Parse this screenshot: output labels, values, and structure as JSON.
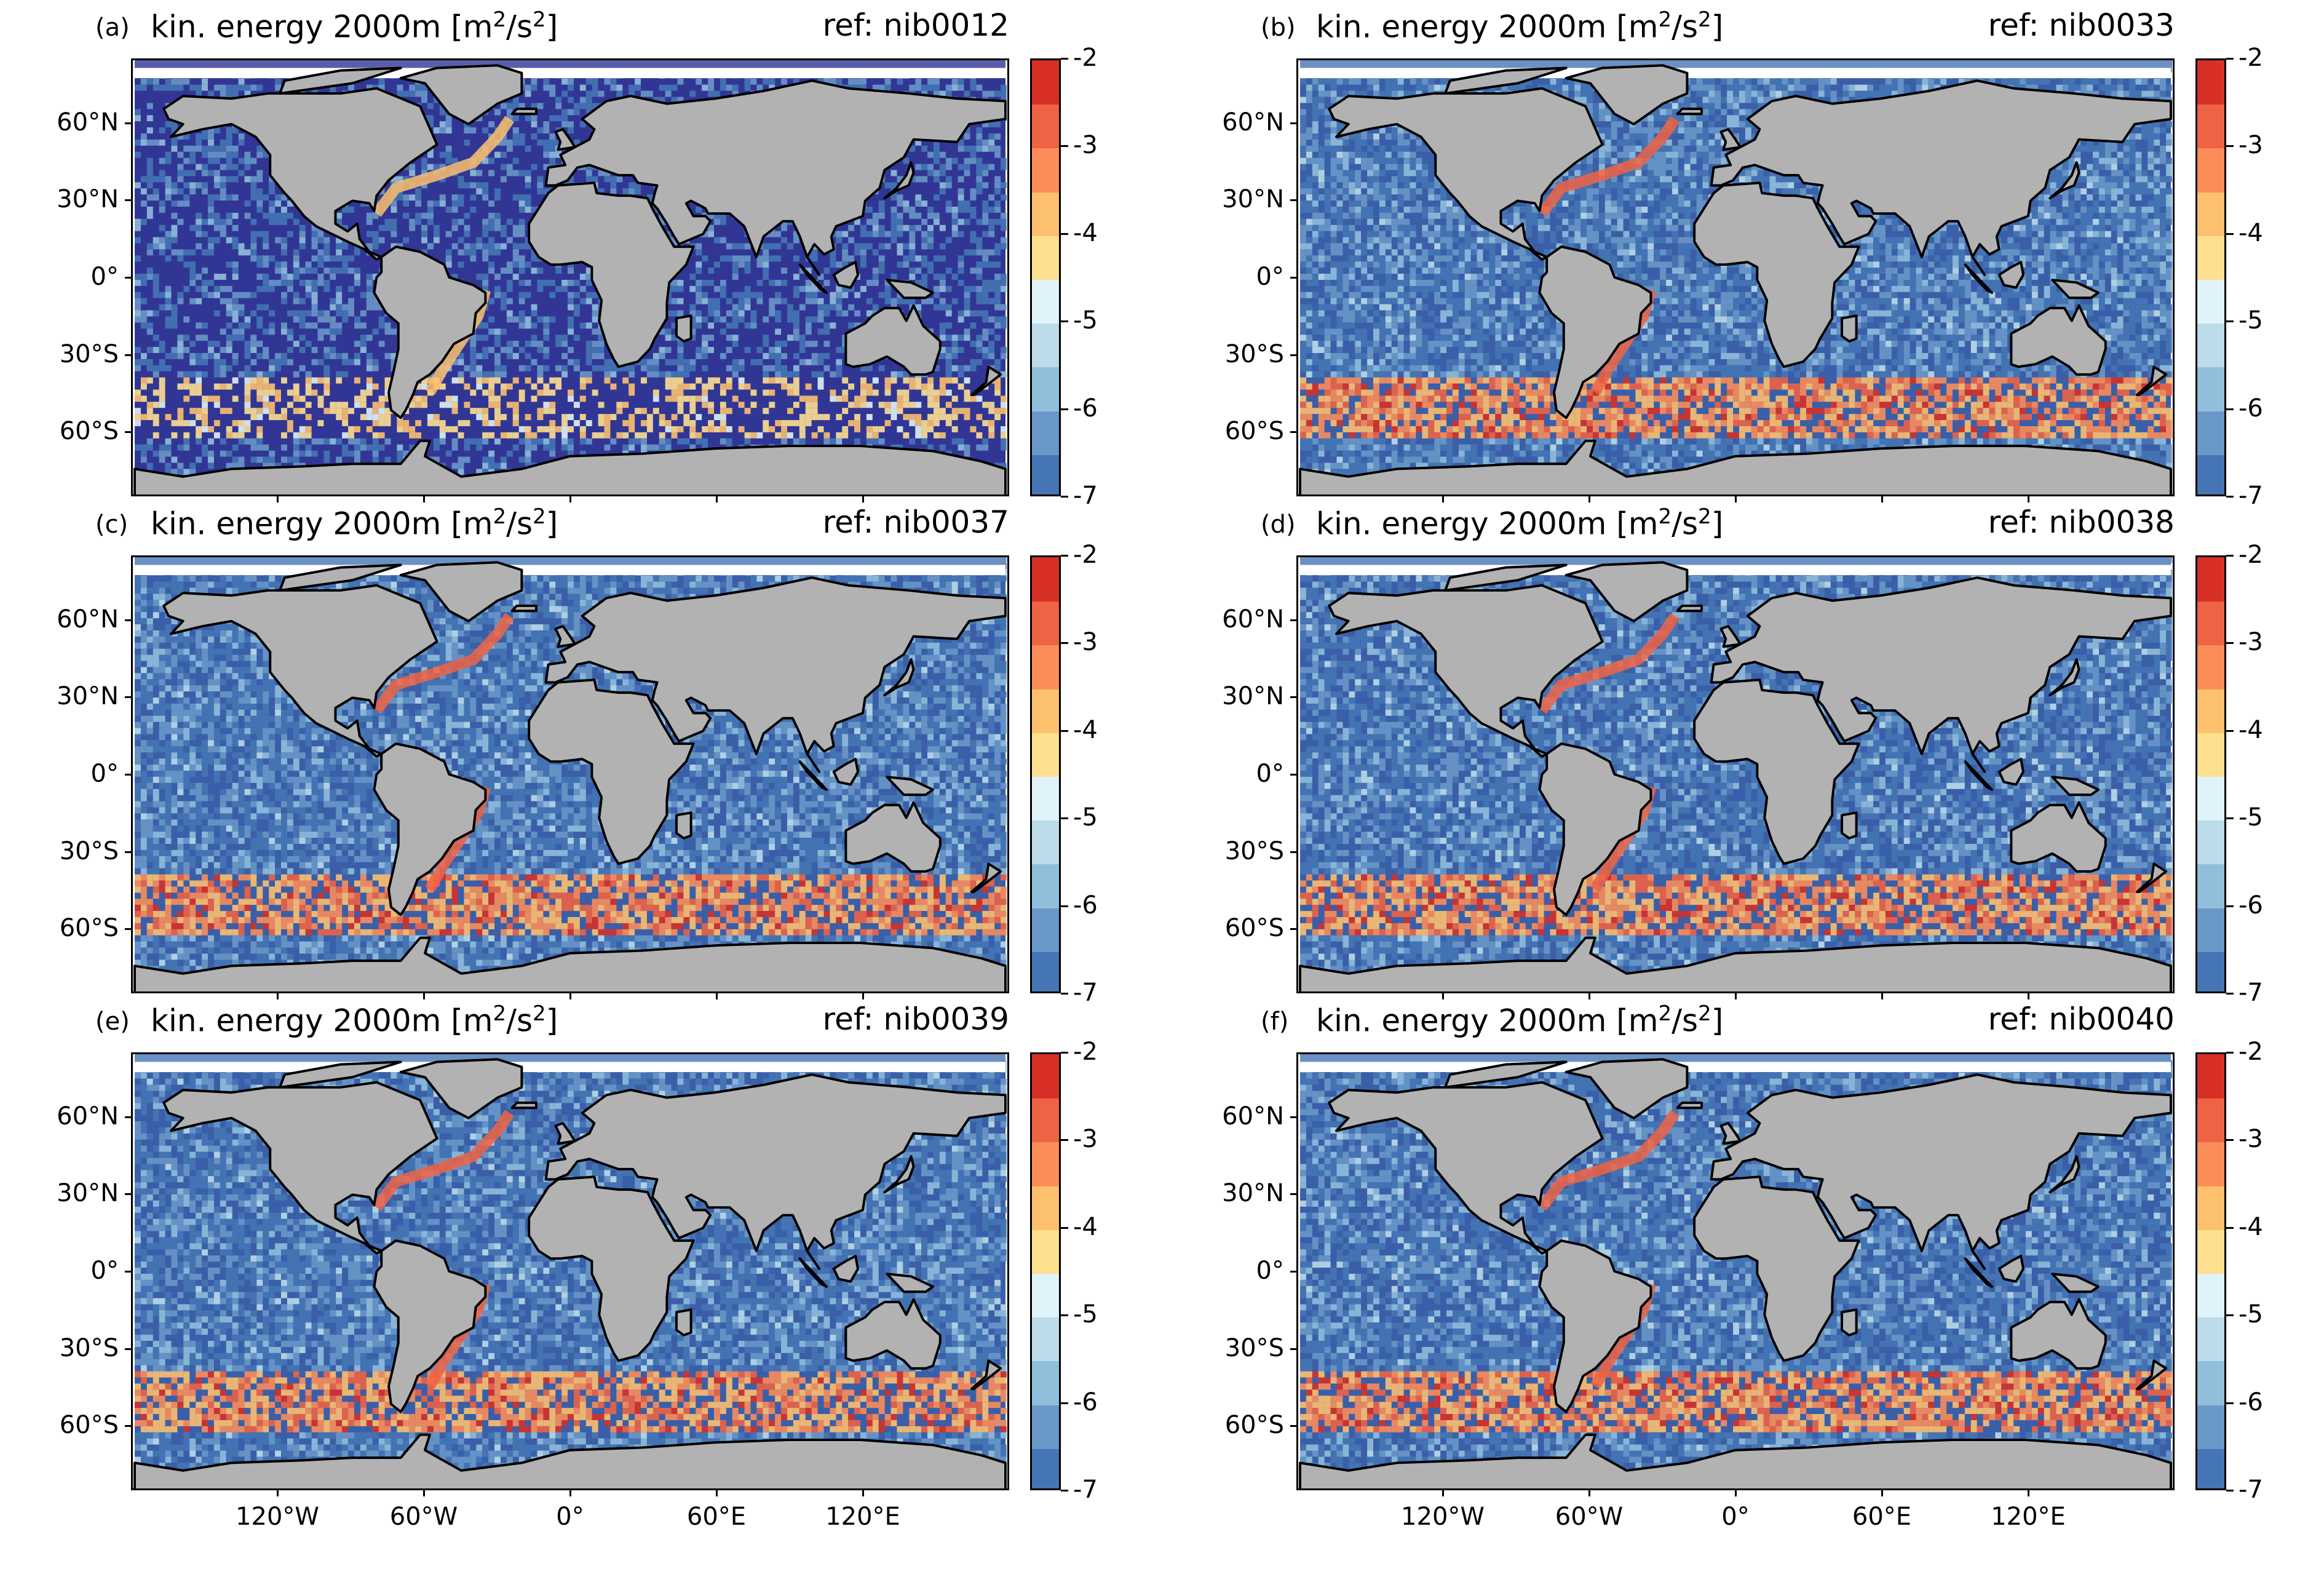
{
  "figure": {
    "panels": [
      {
        "label": "(a)",
        "title_main": "kin. energy 2000m [m",
        "title_sup1": "2",
        "title_mid": "/s",
        "title_sup2": "2",
        "title_end": "]",
        "ref": "ref: nib0012",
        "variant": "low"
      },
      {
        "label": "(b)",
        "title_main": "kin. energy 2000m [m",
        "title_sup1": "2",
        "title_mid": "/s",
        "title_sup2": "2",
        "title_end": "]",
        "ref": "ref: nib0033",
        "variant": "high"
      },
      {
        "label": "(c)",
        "title_main": "kin. energy 2000m [m",
        "title_sup1": "2",
        "title_mid": "/s",
        "title_sup2": "2",
        "title_end": "]",
        "ref": "ref: nib0037",
        "variant": "high"
      },
      {
        "label": "(d)",
        "title_main": "kin. energy 2000m [m",
        "title_sup1": "2",
        "title_mid": "/s",
        "title_sup2": "2",
        "title_end": "]",
        "ref": "ref: nib0038",
        "variant": "high"
      },
      {
        "label": "(e)",
        "title_main": "kin. energy 2000m [m",
        "title_sup1": "2",
        "title_mid": "/s",
        "title_sup2": "2",
        "title_end": "]",
        "ref": "ref: nib0039",
        "variant": "high"
      },
      {
        "label": "(f)",
        "title_main": "kin. energy 2000m [m",
        "title_sup1": "2",
        "title_mid": "/s",
        "title_sup2": "2",
        "title_end": "]",
        "ref": "ref: nib0040",
        "variant": "high"
      }
    ],
    "lat_labels": [
      "60°N",
      "30°N",
      "0°",
      "30°S",
      "60°S"
    ],
    "lon_labels": [
      "120°W",
      "60°W",
      "0°",
      "60°E",
      "120°E"
    ],
    "colorbar": {
      "tick_labels": [
        "-2",
        "-3",
        "-4",
        "-5",
        "-6",
        "-7"
      ],
      "range": [
        -7,
        -2
      ],
      "levels": 10,
      "colors": [
        "#4575b4",
        "#6a98c8",
        "#91bfdb",
        "#bcdce9",
        "#e0f3f8",
        "#fee090",
        "#fdc06f",
        "#fc8d59",
        "#ee6344",
        "#d73027"
      ]
    },
    "colors": {
      "land": "#b2b2b2",
      "ocean_low": "#313695",
      "ocean_mid": "#4a74b4",
      "no_data": "#ffffff",
      "coastline": "#000000"
    }
  }
}
